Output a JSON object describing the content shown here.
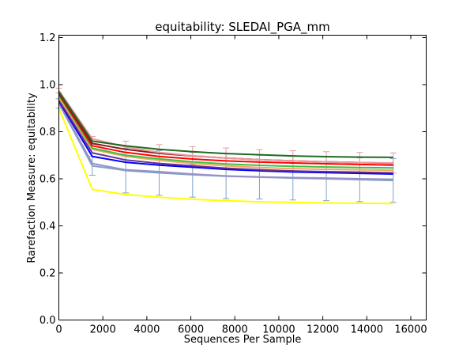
{
  "chart_data": {
    "type": "line",
    "title": "equitability: SLEDAI_PGA_mm",
    "xlabel": "Sequences Per Sample",
    "ylabel": "Rarefaction Measure: equitability",
    "xlim": [
      0,
      16700
    ],
    "ylim": [
      0.0,
      1.21
    ],
    "xticks": [
      0,
      2000,
      4000,
      6000,
      8000,
      10000,
      12000,
      14000,
      16000
    ],
    "xtick_labels": [
      "0",
      "2000",
      "4000",
      "6000",
      "8000",
      "10000",
      "12000",
      "14000",
      "16000"
    ],
    "yticks": [
      0.0,
      0.2,
      0.4,
      0.6,
      0.8,
      1.0,
      1.2
    ],
    "ytick_labels": [
      "0.0",
      "0.2",
      "0.4",
      "0.6",
      "0.8",
      "1.0",
      "1.2"
    ],
    "grid": false,
    "legend": "none",
    "x": [
      0,
      1520,
      3040,
      4560,
      6080,
      7600,
      9120,
      10640,
      12160,
      13680,
      15200
    ],
    "series": [
      {
        "color": "#ffff00",
        "values": [
          0.9,
          0.555,
          0.533,
          0.522,
          0.513,
          0.507,
          0.502,
          0.5,
          0.497,
          0.496,
          0.495
        ]
      },
      {
        "color": "#7fa3c8",
        "values": [
          0.92,
          0.655,
          0.635,
          0.625,
          0.617,
          0.611,
          0.607,
          0.603,
          0.6,
          0.596,
          0.593
        ],
        "error": [
          0.02,
          0.04,
          0.095,
          0.095,
          0.095,
          0.095,
          0.093,
          0.093,
          0.093,
          0.093,
          0.093
        ]
      },
      {
        "color": "#9a8fc8",
        "values": [
          0.925,
          0.665,
          0.638,
          0.63,
          0.62,
          0.612,
          0.608,
          0.605,
          0.603,
          0.6,
          0.598
        ]
      },
      {
        "color": "#0000ff",
        "values": [
          0.93,
          0.695,
          0.67,
          0.658,
          0.649,
          0.64,
          0.634,
          0.629,
          0.626,
          0.623,
          0.62
        ]
      },
      {
        "color": "#6a2f8f",
        "values": [
          0.935,
          0.71,
          0.68,
          0.665,
          0.655,
          0.645,
          0.638,
          0.633,
          0.63,
          0.628,
          0.625
        ]
      },
      {
        "color": "#f0a868",
        "values": [
          0.945,
          0.725,
          0.695,
          0.678,
          0.665,
          0.655,
          0.648,
          0.643,
          0.64,
          0.638,
          0.636
        ]
      },
      {
        "color": "#40c040",
        "values": [
          0.955,
          0.73,
          0.7,
          0.685,
          0.672,
          0.663,
          0.657,
          0.653,
          0.65,
          0.648,
          0.646
        ]
      },
      {
        "color": "#ff0000",
        "values": [
          0.96,
          0.74,
          0.712,
          0.695,
          0.684,
          0.676,
          0.671,
          0.667,
          0.664,
          0.661,
          0.658
        ]
      },
      {
        "color": "#8b1a1a",
        "values": [
          0.965,
          0.75,
          0.725,
          0.708,
          0.697,
          0.688,
          0.681,
          0.676,
          0.672,
          0.669,
          0.666
        ]
      },
      {
        "color": "#e89aa0",
        "values": [
          0.975,
          0.77,
          0.735,
          0.712,
          0.698,
          0.688,
          0.681,
          0.676,
          0.672,
          0.669,
          0.667
        ],
        "error": [
          0.01,
          0.01,
          0.025,
          0.033,
          0.038,
          0.043,
          0.043,
          0.043,
          0.043,
          0.043,
          0.043
        ]
      },
      {
        "color": "#1f6b1f",
        "values": [
          0.97,
          0.76,
          0.74,
          0.725,
          0.715,
          0.707,
          0.702,
          0.697,
          0.694,
          0.692,
          0.691
        ]
      }
    ]
  }
}
